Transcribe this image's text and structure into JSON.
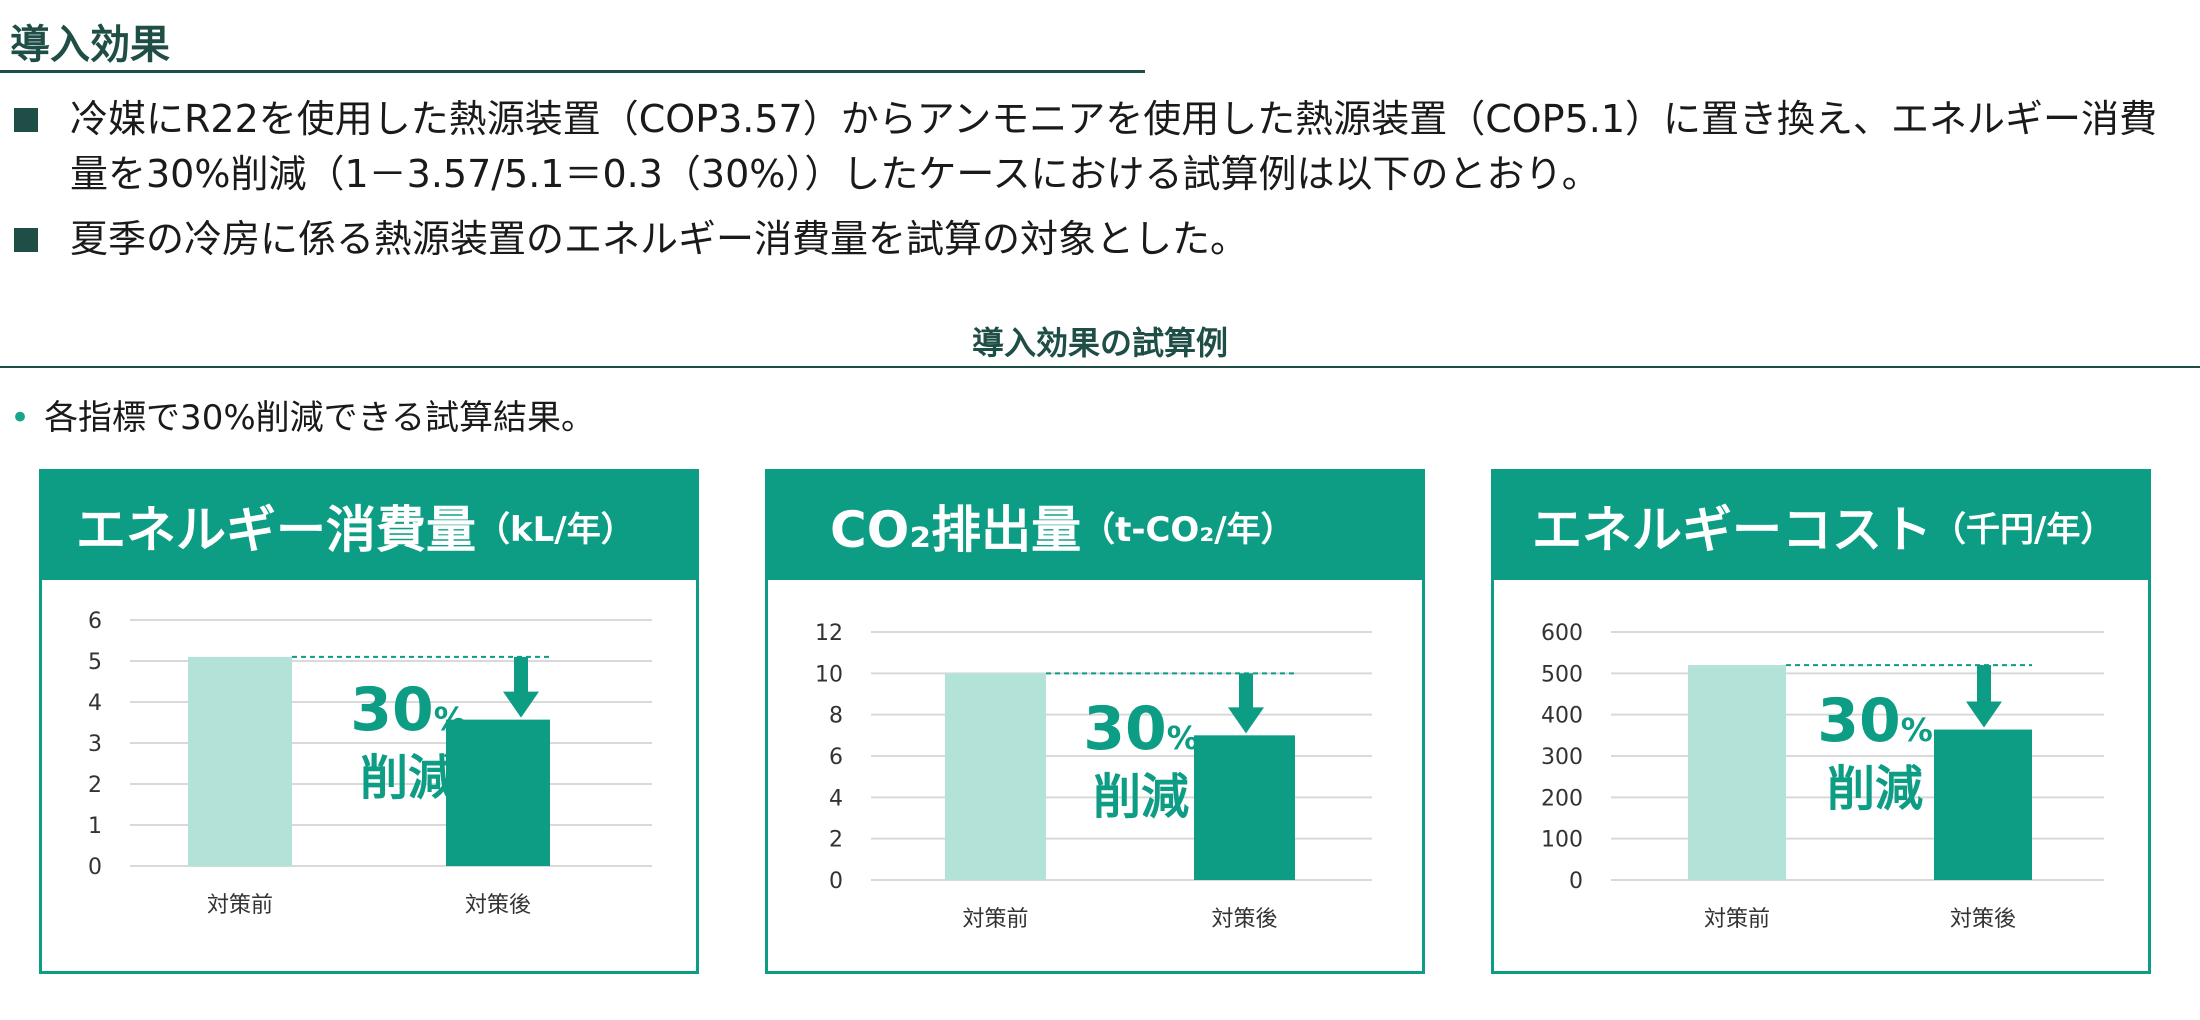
{
  "header": {
    "title": "導入効果"
  },
  "bullets": [
    "冷媒にR22を使用した熱源装置（COP3.57）からアンモニアを使用した熱源装置（COP5.1）に置き換え、エネルギー消費量を30%削減（1－3.57/5.1＝0.3（30%））したケースにおける試算例は以下のとおり。",
    "夏季の冷房に係る熱源装置のエネルギー消費量を試算の対象とした。"
  ],
  "section": {
    "title": "導入効果の試算例"
  },
  "note": "各指標で30%削減できる試算結果。",
  "reduction": {
    "percent": "30",
    "percent_sign": "%",
    "label": "削減"
  },
  "colors": {
    "before": "#b3e3d8",
    "after": "#0d9c84",
    "accent": "#0d9c84",
    "dark": "#1f4e46"
  },
  "chart_data": [
    {
      "type": "bar",
      "title_main": "エネルギー消費量",
      "title_unit": "（kL/年）",
      "categories": [
        "対策前",
        "対策後"
      ],
      "values": [
        5.1,
        3.57
      ],
      "ylim": [
        0,
        6
      ],
      "ticks": [
        0,
        1,
        2,
        3,
        4,
        5,
        6
      ]
    },
    {
      "type": "bar",
      "title_main": "CO₂排出量",
      "title_unit": "（t-CO₂/年）",
      "categories": [
        "対策前",
        "対策後"
      ],
      "values": [
        10,
        7
      ],
      "ylim": [
        0,
        12
      ],
      "ticks": [
        0,
        2,
        4,
        6,
        8,
        10,
        12
      ]
    },
    {
      "type": "bar",
      "title_main": "エネルギーコスト",
      "title_unit": "（千円/年）",
      "categories": [
        "対策前",
        "対策後"
      ],
      "values": [
        520,
        364
      ],
      "ylim": [
        0,
        600
      ],
      "ticks": [
        0,
        100,
        200,
        300,
        400,
        500,
        600
      ]
    }
  ]
}
